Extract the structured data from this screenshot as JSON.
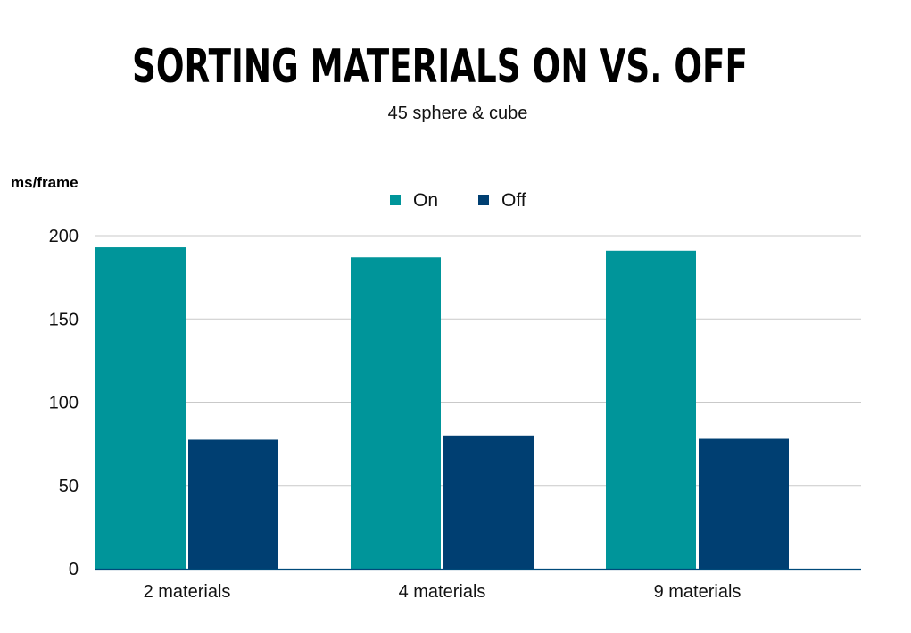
{
  "chart_data": {
    "type": "bar",
    "title": "SORTING MATERIALS ON VS. OFF",
    "subtitle": "45 sphere & cube",
    "xlabel": "",
    "ylabel": "ms/frame",
    "categories": [
      "2 materials",
      "4 materials",
      "9 materials"
    ],
    "series": [
      {
        "name": "On",
        "color": "#00959a",
        "values": [
          193,
          187,
          191
        ]
      },
      {
        "name": "Off",
        "color": "#003f72",
        "values": [
          77.5,
          80,
          78
        ]
      }
    ],
    "ylim": [
      0,
      200
    ],
    "yticks": [
      0,
      50,
      100,
      150,
      200
    ],
    "grid": true,
    "legend_position": "top-center"
  }
}
